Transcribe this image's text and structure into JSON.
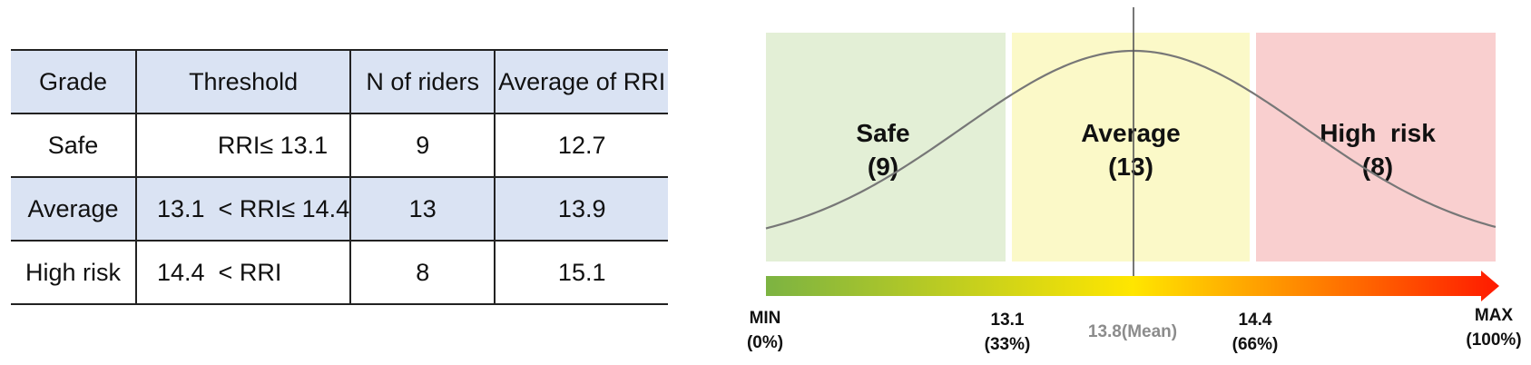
{
  "table": {
    "headers": [
      "Grade",
      "Threshold",
      "N of riders",
      "Average of RRI"
    ],
    "rows": [
      {
        "grade": "Safe",
        "threshold": "RRI≤ 13.1",
        "n": "9",
        "avg": "12.7"
      },
      {
        "grade": "Average",
        "threshold": "13.1  < RRI≤ 14.4",
        "n": "13",
        "avg": "13.9"
      },
      {
        "grade": "High risk",
        "threshold": "14.4  < RRI",
        "n": "8",
        "avg": "15.1"
      }
    ]
  },
  "diagram": {
    "zones": [
      {
        "name": "Safe",
        "count": "(9)",
        "color": "#e3efd6"
      },
      {
        "name": "Average",
        "count": "(13)",
        "color": "#fbf9c8"
      },
      {
        "name": "High  risk",
        "count": "(8)",
        "color": "#f9cfcf"
      }
    ],
    "ticks": [
      {
        "value": "MIN",
        "pct": "(0%)"
      },
      {
        "value": "13.1",
        "pct": "(33%)"
      },
      {
        "value": "14.4",
        "pct": "(66%)"
      },
      {
        "value": "MAX",
        "pct": "(100%)"
      }
    ],
    "mean_label": "13.8(Mean)",
    "gradient_colors": [
      "#7cb342",
      "#ffe600",
      "#ff1a00"
    ],
    "curve_color": "#777777"
  }
}
